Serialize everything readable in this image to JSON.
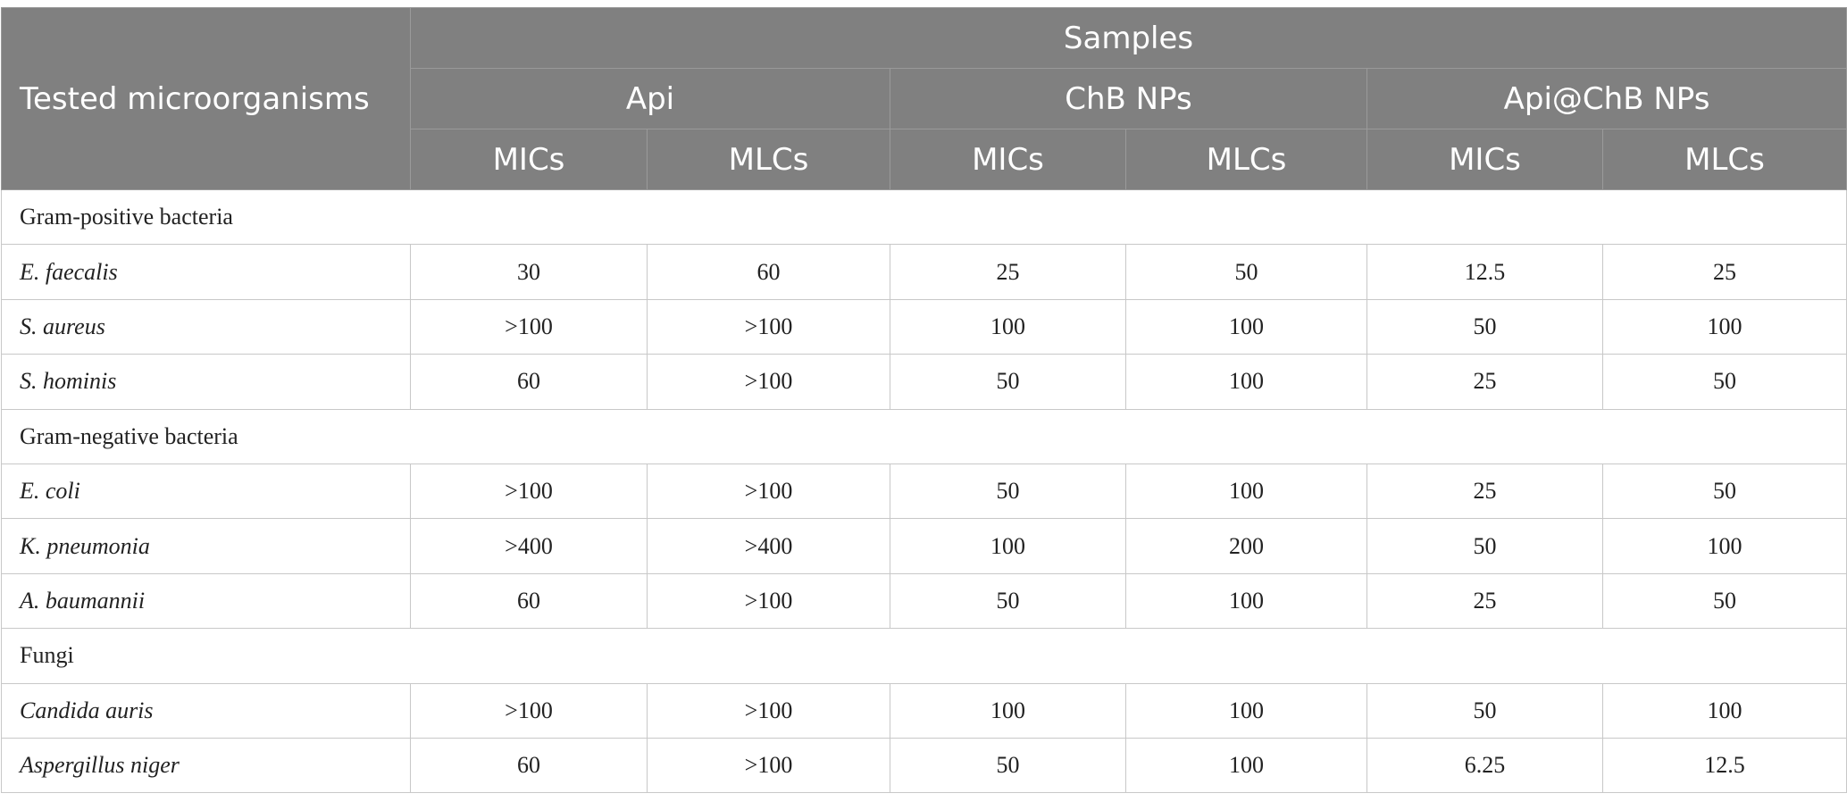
{
  "header": {
    "first_col": "Tested microorganisms",
    "samples": "Samples",
    "groups": [
      "Api",
      "ChB NPs",
      "Api@ChB NPs"
    ],
    "sub": [
      "MICs",
      "MLCs",
      "MICs",
      "MLCs",
      "MICs",
      "MLCs"
    ]
  },
  "sections": [
    {
      "title": "Gram-positive bacteria",
      "rows": [
        {
          "name": "E. faecalis",
          "values": [
            "30",
            "60",
            "25",
            "50",
            "12.5",
            "25"
          ]
        },
        {
          "name": "S. aureus",
          "values": [
            ">100",
            ">100",
            "100",
            "100",
            "50",
            "100"
          ]
        },
        {
          "name": "S. hominis",
          "values": [
            "60",
            ">100",
            "50",
            "100",
            "25",
            "50"
          ]
        }
      ]
    },
    {
      "title": "Gram-negative bacteria",
      "rows": [
        {
          "name": "E. coli",
          "values": [
            ">100",
            ">100",
            "50",
            "100",
            "25",
            "50"
          ]
        },
        {
          "name": "K. pneumonia",
          "values": [
            ">400",
            ">400",
            "100",
            "200",
            "50",
            "100"
          ]
        },
        {
          "name": "A. baumannii",
          "values": [
            "60",
            ">100",
            "50",
            "100",
            "25",
            "50"
          ]
        }
      ]
    },
    {
      "title": "Fungi",
      "rows": [
        {
          "name": "Candida auris",
          "values": [
            ">100",
            ">100",
            "100",
            "100",
            "50",
            "100"
          ]
        },
        {
          "name": "Aspergillus niger",
          "values": [
            "60",
            ">100",
            "50",
            "100",
            "6.25",
            "12.5"
          ]
        }
      ]
    }
  ]
}
